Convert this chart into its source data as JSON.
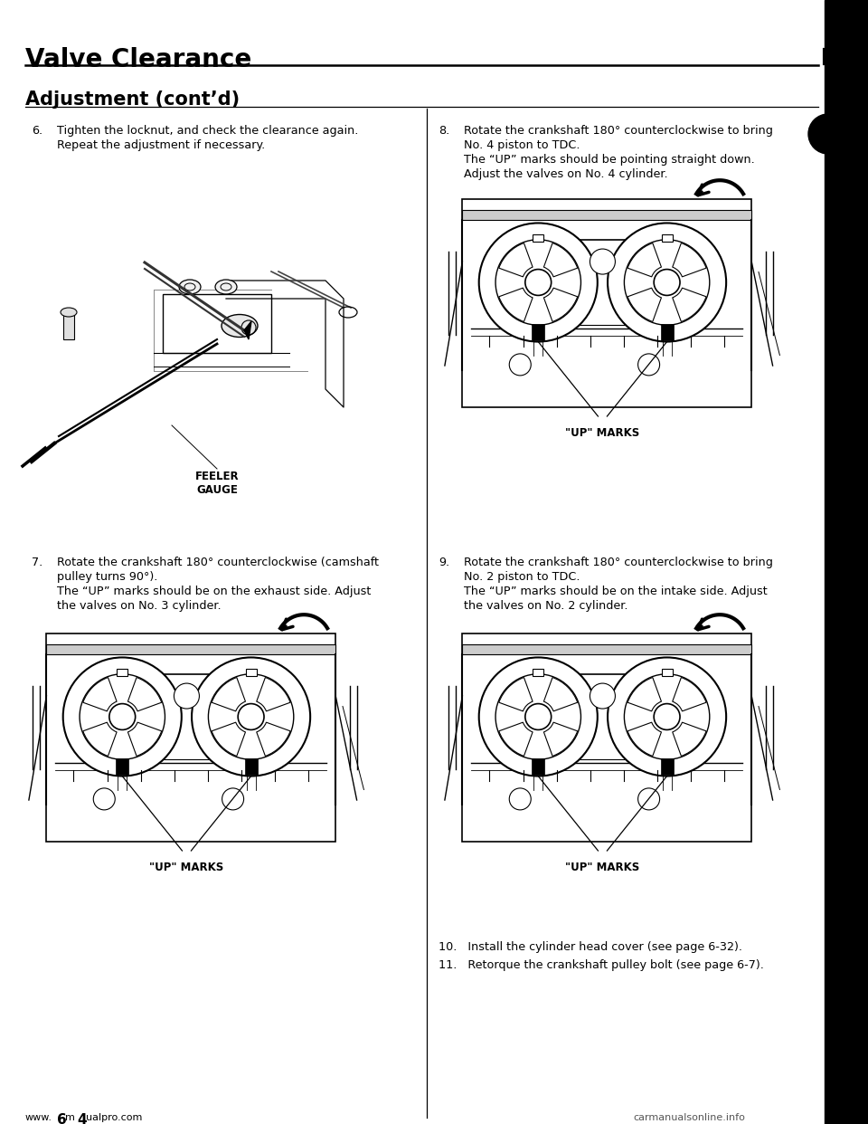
{
  "bg_color": "#ffffff",
  "page_width": 9.6,
  "page_height": 12.42,
  "title_text": "Valve Clearance",
  "subtitle_text": "Adjustment (cont’d)",
  "item6_num": "6.",
  "item6_line1": "Tighten the locknut, and check the clearance again.",
  "item6_line2": "Repeat the adjustment if necessary.",
  "item7_num": "7.",
  "item7_line1": "Rotate the crankshaft 180° counterclockwise (camshaft",
  "item7_line2": "pulley turns 90°).",
  "item7_line3": "The “UP” marks should be on the exhaust side. Adjust",
  "item7_line4": "the valves on No. 3 cylinder.",
  "item8_num": "8.",
  "item8_line1": "Rotate the crankshaft 180° counterclockwise to bring",
  "item8_line2": "No. 4 piston to TDC.",
  "item8_line3": "The “UP” marks should be pointing straight down.",
  "item8_line4": "Adjust the valves on No. 4 cylinder.",
  "item9_num": "9.",
  "item9_line1": "Rotate the crankshaft 180° counterclockwise to bring",
  "item9_line2": "No. 2 piston to TDC.",
  "item9_line3": "The “UP” marks should be on the intake side. Adjust",
  "item9_line4": "the valves on No. 2 cylinder.",
  "item10_text": "10.   Install the cylinder head cover (see page 6-32).",
  "item11_text": "11.   Retorque the crankshaft pulley bolt (see page 6-7).",
  "feeler_label1": "FEELER",
  "feeler_label2": "GAUGE",
  "up_marks_label": "\"UP\" MARKS",
  "footer_left": "www.",
  "footer_6": "6",
  "footer_m4": "m",
  "footer_4": "4",
  "footer_right": "ualpro.com",
  "footer_far_right": "carmanualsonline.info"
}
